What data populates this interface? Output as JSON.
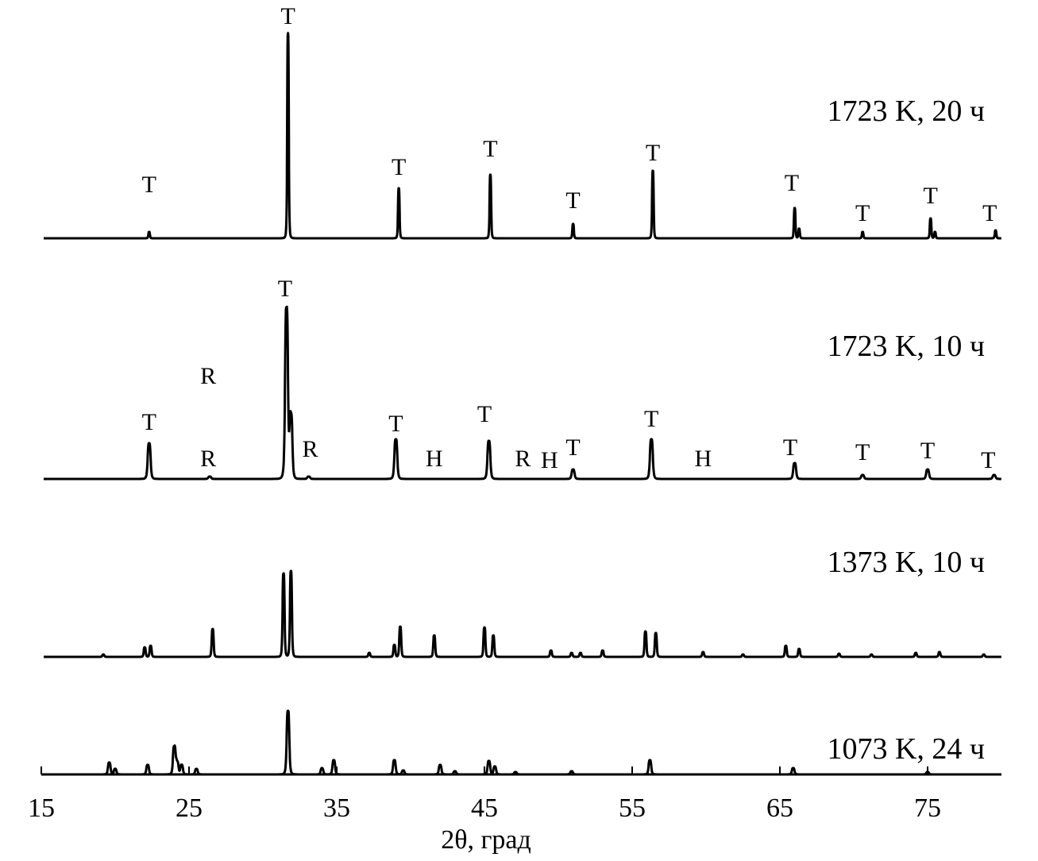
{
  "chart_data": {
    "type": "line",
    "title": "",
    "xlabel": "2θ, град",
    "ylabel": "",
    "xlim": [
      15,
      80
    ],
    "xticks": [
      "15",
      "25",
      "35",
      "45",
      "55",
      "65",
      "75"
    ],
    "xtick_values": [
      15,
      25,
      35,
      45,
      55,
      65,
      75
    ],
    "intensity_units": "arbitrary, stacked traces",
    "series": [
      {
        "name": "1723 K, 20 ч",
        "peak_width": 0.12,
        "peaks": [
          [
            22.3,
            8
          ],
          [
            31.7,
            258
          ],
          [
            39.2,
            63
          ],
          [
            45.4,
            80
          ],
          [
            51.0,
            18
          ],
          [
            56.4,
            85
          ],
          [
            66.0,
            38
          ],
          [
            66.3,
            12
          ],
          [
            70.6,
            8
          ],
          [
            75.2,
            25
          ],
          [
            75.5,
            8
          ],
          [
            79.6,
            10
          ]
        ],
        "phase_labels": [
          {
            "text": "T",
            "x": 22.3,
            "y": 50
          },
          {
            "text": "T",
            "x": 31.7,
            "y": 262
          },
          {
            "text": "T",
            "x": 39.2,
            "y": 72
          },
          {
            "text": "T",
            "x": 45.4,
            "y": 95
          },
          {
            "text": "T",
            "x": 51.0,
            "y": 30
          },
          {
            "text": "T",
            "x": 56.4,
            "y": 90
          },
          {
            "text": "T",
            "x": 65.8,
            "y": 52
          },
          {
            "text": "T",
            "x": 70.6,
            "y": 14
          },
          {
            "text": "T",
            "x": 75.2,
            "y": 36
          },
          {
            "text": "T",
            "x": 79.2,
            "y": 14
          }
        ]
      },
      {
        "name": "1723 K, 10 ч",
        "peak_width": 0.22,
        "peaks": [
          [
            22.3,
            45
          ],
          [
            26.4,
            3
          ],
          [
            31.6,
            215
          ],
          [
            31.9,
            80
          ],
          [
            33.1,
            3
          ],
          [
            39.0,
            50
          ],
          [
            45.3,
            48
          ],
          [
            51.0,
            12
          ],
          [
            56.3,
            50
          ],
          [
            66.0,
            20
          ],
          [
            70.6,
            5
          ],
          [
            75.0,
            12
          ],
          [
            79.5,
            5
          ]
        ],
        "phase_labels": [
          {
            "text": "T",
            "x": 22.3,
            "y": 54
          },
          {
            "text": "R",
            "x": 26.3,
            "y": 112
          },
          {
            "text": "R",
            "x": 26.3,
            "y": 8
          },
          {
            "text": "T",
            "x": 31.5,
            "y": 222
          },
          {
            "text": "R",
            "x": 33.2,
            "y": 20
          },
          {
            "text": "T",
            "x": 39.0,
            "y": 52
          },
          {
            "text": "H",
            "x": 41.6,
            "y": 8
          },
          {
            "text": "T",
            "x": 45.0,
            "y": 64
          },
          {
            "text": "R",
            "x": 47.6,
            "y": 8
          },
          {
            "text": "H",
            "x": 49.4,
            "y": 6
          },
          {
            "text": "T",
            "x": 51.0,
            "y": 22
          },
          {
            "text": "T",
            "x": 56.3,
            "y": 58
          },
          {
            "text": "H",
            "x": 59.8,
            "y": 8
          },
          {
            "text": "T",
            "x": 65.7,
            "y": 22
          },
          {
            "text": "T",
            "x": 70.6,
            "y": 16
          },
          {
            "text": "T",
            "x": 75.0,
            "y": 18
          },
          {
            "text": "T",
            "x": 79.1,
            "y": 6
          }
        ]
      },
      {
        "name": "1373 K, 10 ч",
        "peak_width": 0.15,
        "peaks": [
          [
            19.2,
            3
          ],
          [
            22.0,
            12
          ],
          [
            22.4,
            14
          ],
          [
            26.6,
            35
          ],
          [
            31.4,
            105
          ],
          [
            31.9,
            108
          ],
          [
            37.2,
            5
          ],
          [
            38.9,
            15
          ],
          [
            39.3,
            38
          ],
          [
            41.6,
            27
          ],
          [
            45.0,
            37
          ],
          [
            45.6,
            27
          ],
          [
            49.5,
            8
          ],
          [
            50.9,
            5
          ],
          [
            51.5,
            5
          ],
          [
            53.0,
            8
          ],
          [
            55.9,
            32
          ],
          [
            56.6,
            30
          ],
          [
            59.8,
            6
          ],
          [
            62.5,
            3
          ],
          [
            65.4,
            14
          ],
          [
            66.3,
            10
          ],
          [
            69.0,
            4
          ],
          [
            71.2,
            3
          ],
          [
            74.2,
            5
          ],
          [
            75.8,
            6
          ],
          [
            78.8,
            3
          ]
        ],
        "phase_labels": []
      },
      {
        "name": "1073 K, 24 ч",
        "peak_width": 0.2,
        "peaks": [
          [
            19.6,
            15
          ],
          [
            20.0,
            7
          ],
          [
            22.2,
            12
          ],
          [
            24.0,
            35
          ],
          [
            24.2,
            15
          ],
          [
            24.5,
            12
          ],
          [
            25.5,
            7
          ],
          [
            31.7,
            80
          ],
          [
            34.0,
            8
          ],
          [
            34.8,
            18
          ],
          [
            38.9,
            18
          ],
          [
            39.5,
            5
          ],
          [
            42.0,
            12
          ],
          [
            43.0,
            4
          ],
          [
            45.3,
            17
          ],
          [
            45.7,
            10
          ],
          [
            47.1,
            3
          ],
          [
            50.9,
            4
          ],
          [
            56.2,
            18
          ],
          [
            65.9,
            8
          ],
          [
            75.0,
            3
          ]
        ],
        "phase_labels": []
      }
    ]
  }
}
